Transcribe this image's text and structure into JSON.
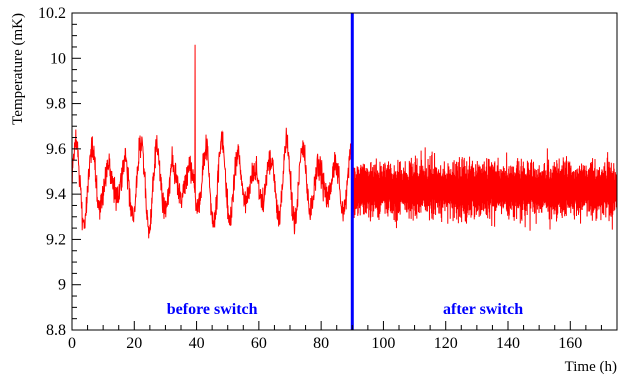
{
  "chart_data": {
    "type": "line",
    "title": "",
    "xlabel": "Time (h)",
    "ylabel": "Temperature (mK)",
    "xlim": [
      0,
      175
    ],
    "ylim": [
      8.8,
      10.2
    ],
    "x_ticks": [
      0,
      20,
      40,
      60,
      80,
      100,
      120,
      140,
      160
    ],
    "x_tick_labels": [
      "0",
      "20",
      "40",
      "60",
      "80",
      "100",
      "120",
      "140",
      "160"
    ],
    "y_ticks": [
      8.8,
      9,
      9.2,
      9.4,
      9.6,
      9.8,
      10,
      10.2
    ],
    "y_tick_labels": [
      "8.8",
      "9",
      "9.2",
      "9.4",
      "9.6",
      "9.8",
      "10",
      "10.2"
    ],
    "grid": false,
    "series": [
      {
        "color": "#ff0000",
        "segments": [
          {
            "x_range": [
              0,
              90
            ],
            "mean": 9.45,
            "oscillation_period_h": 5.2,
            "oscillation_amplitude": 0.17,
            "noise_amplitude": 0.06,
            "observed_min": 9.08,
            "observed_max": 10.06,
            "spike_at_x": 39.5,
            "spike_value": 10.06
          },
          {
            "x_range": [
              90,
              175
            ],
            "mean": 9.42,
            "noise_amplitude": 0.1,
            "observed_min": 9.2,
            "observed_max": 9.66
          }
        ]
      }
    ],
    "reference_lines": [
      {
        "orientation": "vertical",
        "x": 90,
        "color": "#0000ff"
      }
    ],
    "annotations": [
      {
        "text": "before switch",
        "x": 45,
        "y": 8.87,
        "color": "#0000ff"
      },
      {
        "text": "after switch",
        "x": 132,
        "y": 8.87,
        "color": "#0000ff"
      }
    ]
  }
}
